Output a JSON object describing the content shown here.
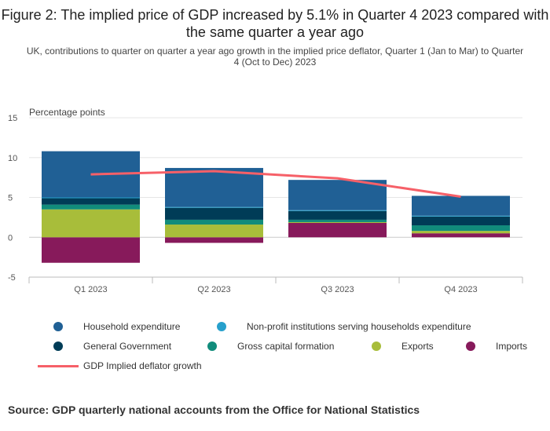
{
  "title": "Figure 2: The implied price of GDP increased by 5.1% in Quarter 4 2023 compared with the same quarter a year ago",
  "subtitle": "UK, contributions to quarter on quarter a year ago growth in the implied price deflator, Quarter 1 (Jan to Mar) to Quarter 4 (Oct to Dec) 2023",
  "source": "Source: GDP quarterly national accounts from the Office for National Statistics",
  "chart_data": {
    "type": "bar",
    "stacked": true,
    "ylabel": "Percentage points",
    "ylim": [
      -5,
      15
    ],
    "yticks": [
      15,
      10,
      5,
      0,
      -5
    ],
    "categories": [
      "Q1 2023",
      "Q2 2023",
      "Q3 2023",
      "Q4 2023"
    ],
    "series": [
      {
        "name": "Household expenditure",
        "color": "#206095",
        "values": [
          5.8,
          4.9,
          3.8,
          2.5
        ]
      },
      {
        "name": "Non-profit institutions serving households expenditure",
        "color": "#27a0cc",
        "values": [
          0.1,
          0.1,
          0.1,
          0.1
        ]
      },
      {
        "name": "General Government",
        "color": "#003c57",
        "values": [
          0.8,
          1.5,
          1.1,
          1.1
        ]
      },
      {
        "name": "Gross capital formation",
        "color": "#118c7b",
        "values": [
          0.6,
          0.6,
          0.3,
          0.7
        ]
      },
      {
        "name": "Exports",
        "color": "#a8bd3a",
        "values": [
          3.5,
          1.6,
          0.1,
          0.3
        ]
      },
      {
        "name": "Imports",
        "color": "#871a5b",
        "values": [
          -3.2,
          -0.7,
          1.8,
          0.5
        ]
      }
    ],
    "line_series": {
      "name": "GDP Implied deflator growth",
      "color": "#f66068",
      "values": [
        7.9,
        8.3,
        7.4,
        5.1
      ]
    },
    "grid": true,
    "legend_position": "bottom"
  }
}
